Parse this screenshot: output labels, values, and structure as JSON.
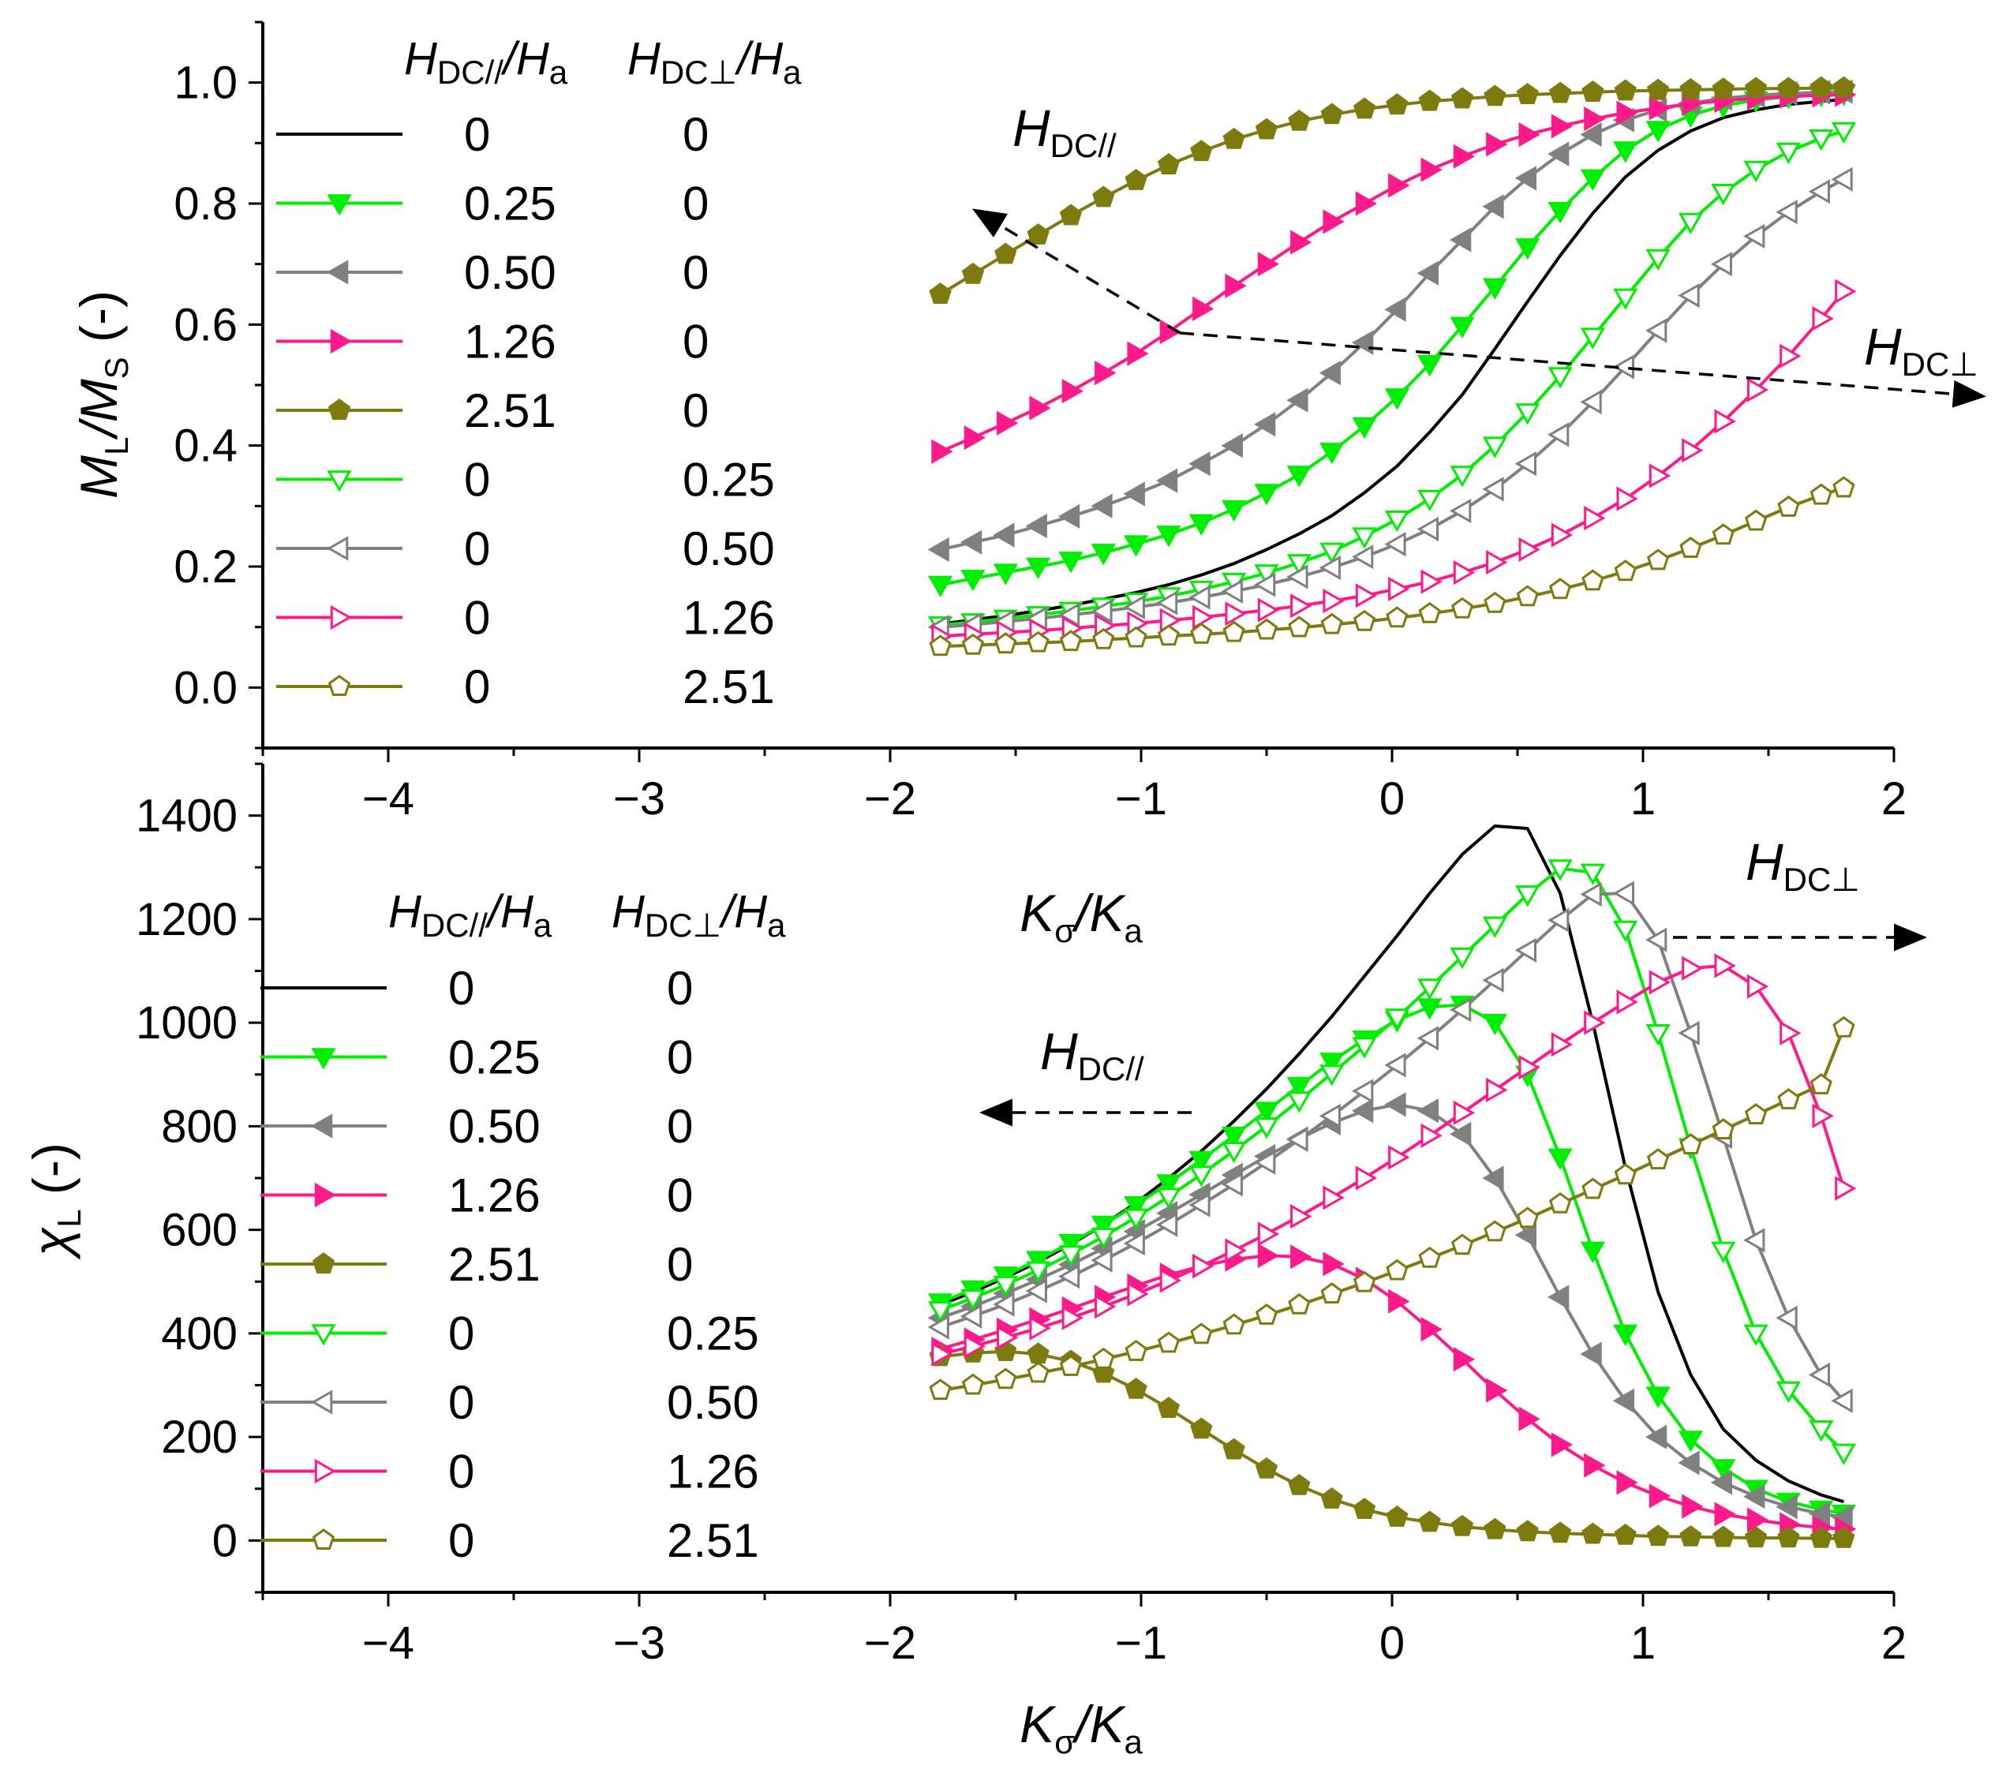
{
  "colors": {
    "black": "#000000",
    "green": "#00ee00",
    "gray": "#808080",
    "pink": "#ff1a8c",
    "olive": "#7d7a0e"
  },
  "legend": {
    "headers": {
      "par_main": "H",
      "par_sub": "DC//",
      "par_rest": "/H",
      "par_rest_sub": "a",
      "perp_main": "H",
      "perp_sub": "DC⊥",
      "perp_rest": "/H",
      "perp_rest_sub": "a"
    },
    "rows": [
      {
        "par": "0",
        "perp": "0"
      },
      {
        "par": "0.25",
        "perp": "0"
      },
      {
        "par": "0.50",
        "perp": "0"
      },
      {
        "par": "1.26",
        "perp": "0"
      },
      {
        "par": "2.51",
        "perp": "0"
      },
      {
        "par": "0",
        "perp": "0.25"
      },
      {
        "par": "0",
        "perp": "0.50"
      },
      {
        "par": "0",
        "perp": "1.26"
      },
      {
        "par": "0",
        "perp": "2.51"
      }
    ]
  },
  "annotations": {
    "top_par": {
      "main": "H",
      "sub": "DC//"
    },
    "top_perp": {
      "main": "H",
      "sub": "DC⊥"
    },
    "bottom_par": {
      "main": "H",
      "sub": "DC//"
    },
    "bottom_perp": {
      "main": "H",
      "sub": "DC⊥"
    }
  },
  "chart_data": [
    {
      "type": "line",
      "title": "",
      "xlabel": "Kσ/Ka",
      "ylabel": "ML/MS (-)",
      "xlabel_parts": {
        "a": "K",
        "a_sub": "σ",
        "b": "/K",
        "b_sub": "a"
      },
      "ylabel_parts": {
        "a": "M",
        "a_sub": "L",
        "b": "/M",
        "b_sub": "S",
        "c": " (-)"
      },
      "xlim": [
        -4.5,
        2
      ],
      "ylim": [
        -0.1,
        1.1
      ],
      "xticks": [
        -4,
        -3,
        -2,
        -1,
        0,
        1,
        2
      ],
      "xtick_labels": [
        "−4",
        "−3",
        "−2",
        "−1",
        "0",
        "1",
        "2"
      ],
      "yticks": [
        0.0,
        0.2,
        0.4,
        0.6,
        0.8,
        1.0
      ],
      "ytick_labels": [
        "0.0",
        "0.2",
        "0.4",
        "0.6",
        "0.8",
        "1.0"
      ],
      "x": [
        -1.8,
        -1.67,
        -1.54,
        -1.41,
        -1.28,
        -1.15,
        -1.02,
        -0.89,
        -0.76,
        -0.63,
        -0.5,
        -0.37,
        -0.24,
        -0.11,
        0.02,
        0.15,
        0.28,
        0.41,
        0.54,
        0.67,
        0.8,
        0.93,
        1.06,
        1.19,
        1.32,
        1.45,
        1.58,
        1.71,
        1.8
      ],
      "series": [
        {
          "name": "0 / 0",
          "color": "black",
          "marker": "none",
          "filled": false,
          "values": [
            0.105,
            0.112,
            0.119,
            0.127,
            0.136,
            0.146,
            0.157,
            0.17,
            0.186,
            0.205,
            0.228,
            0.254,
            0.284,
            0.322,
            0.366,
            0.422,
            0.484,
            0.56,
            0.638,
            0.714,
            0.784,
            0.844,
            0.888,
            0.92,
            0.942,
            0.955,
            0.964,
            0.969,
            0.972
          ]
        },
        {
          "name": "0.25 / 0",
          "color": "green",
          "marker": "tri-down",
          "filled": true,
          "values": [
            0.17,
            0.18,
            0.19,
            0.2,
            0.21,
            0.223,
            0.237,
            0.253,
            0.272,
            0.295,
            0.322,
            0.352,
            0.39,
            0.432,
            0.48,
            0.535,
            0.598,
            0.662,
            0.728,
            0.788,
            0.842,
            0.888,
            0.922,
            0.946,
            0.962,
            0.971,
            0.977,
            0.98,
            0.982
          ]
        },
        {
          "name": "0.50 / 0",
          "color": "gray",
          "marker": "tri-left",
          "filled": true,
          "values": [
            0.228,
            0.24,
            0.252,
            0.267,
            0.283,
            0.3,
            0.32,
            0.342,
            0.37,
            0.4,
            0.435,
            0.475,
            0.52,
            0.57,
            0.625,
            0.685,
            0.74,
            0.795,
            0.842,
            0.882,
            0.914,
            0.938,
            0.955,
            0.966,
            0.974,
            0.979,
            0.982,
            0.984,
            0.985
          ]
        },
        {
          "name": "1.26 / 0",
          "color": "pink",
          "marker": "tri-right",
          "filled": true,
          "values": [
            0.39,
            0.413,
            0.437,
            0.462,
            0.49,
            0.52,
            0.552,
            0.588,
            0.626,
            0.664,
            0.7,
            0.736,
            0.77,
            0.8,
            0.83,
            0.856,
            0.878,
            0.898,
            0.914,
            0.928,
            0.94,
            0.95,
            0.958,
            0.965,
            0.97,
            0.974,
            0.977,
            0.979,
            0.98
          ]
        },
        {
          "name": "2.51 / 0",
          "color": "olive",
          "marker": "pent",
          "filled": true,
          "values": [
            0.65,
            0.683,
            0.716,
            0.748,
            0.78,
            0.81,
            0.838,
            0.864,
            0.886,
            0.906,
            0.922,
            0.936,
            0.947,
            0.956,
            0.963,
            0.969,
            0.973,
            0.977,
            0.98,
            0.982,
            0.984,
            0.986,
            0.987,
            0.988,
            0.989,
            0.99,
            0.99,
            0.991,
            0.991
          ]
        },
        {
          "name": "0 / 0.25",
          "color": "green",
          "marker": "tri-down",
          "filled": false,
          "values": [
            0.103,
            0.108,
            0.114,
            0.12,
            0.127,
            0.134,
            0.142,
            0.151,
            0.162,
            0.175,
            0.189,
            0.206,
            0.225,
            0.25,
            0.278,
            0.312,
            0.352,
            0.4,
            0.455,
            0.515,
            0.58,
            0.645,
            0.71,
            0.77,
            0.818,
            0.856,
            0.886,
            0.908,
            0.92
          ]
        },
        {
          "name": "0 / 0.50",
          "color": "gray",
          "marker": "tri-left",
          "filled": false,
          "values": [
            0.1,
            0.104,
            0.109,
            0.114,
            0.12,
            0.126,
            0.133,
            0.14,
            0.149,
            0.159,
            0.17,
            0.183,
            0.198,
            0.216,
            0.237,
            0.262,
            0.292,
            0.328,
            0.37,
            0.418,
            0.472,
            0.53,
            0.59,
            0.648,
            0.7,
            0.746,
            0.786,
            0.82,
            0.84
          ]
        },
        {
          "name": "0 / 1.26",
          "color": "pink",
          "marker": "tri-right",
          "filled": false,
          "values": [
            0.085,
            0.088,
            0.091,
            0.094,
            0.098,
            0.102,
            0.106,
            0.111,
            0.116,
            0.122,
            0.128,
            0.135,
            0.143,
            0.152,
            0.163,
            0.175,
            0.19,
            0.207,
            0.228,
            0.252,
            0.28,
            0.312,
            0.35,
            0.392,
            0.44,
            0.492,
            0.548,
            0.61,
            0.655
          ]
        },
        {
          "name": "0 / 2.51",
          "color": "olive",
          "marker": "pent",
          "filled": false,
          "values": [
            0.068,
            0.07,
            0.072,
            0.074,
            0.076,
            0.079,
            0.082,
            0.085,
            0.088,
            0.091,
            0.095,
            0.099,
            0.104,
            0.109,
            0.115,
            0.122,
            0.13,
            0.139,
            0.15,
            0.162,
            0.176,
            0.192,
            0.21,
            0.23,
            0.252,
            0.275,
            0.298,
            0.318,
            0.33
          ]
        }
      ]
    },
    {
      "type": "line",
      "title": "",
      "xlabel": "Kσ/Ka",
      "ylabel": "χL (-)",
      "xlabel_parts": {
        "a": "K",
        "a_sub": "σ",
        "b": "/K",
        "b_sub": "a"
      },
      "ylabel_parts": {
        "a": "χ",
        "a_sub": "L",
        "b": " (-)"
      },
      "xlim": [
        -4.5,
        2
      ],
      "ylim": [
        -100,
        1500
      ],
      "xticks": [
        -4,
        -3,
        -2,
        -1,
        0,
        1,
        2
      ],
      "xtick_labels": [
        "−4",
        "−3",
        "−2",
        "−1",
        "0",
        "1",
        "2"
      ],
      "yticks": [
        0,
        200,
        400,
        600,
        800,
        1000,
        1200,
        1400
      ],
      "ytick_labels": [
        "0",
        "200",
        "400",
        "600",
        "800",
        "1000",
        "1200",
        "1400"
      ],
      "x": [
        -1.8,
        -1.67,
        -1.54,
        -1.41,
        -1.28,
        -1.15,
        -1.02,
        -0.89,
        -0.76,
        -0.63,
        -0.5,
        -0.37,
        -0.24,
        -0.11,
        0.02,
        0.15,
        0.28,
        0.41,
        0.54,
        0.67,
        0.8,
        0.93,
        1.06,
        1.19,
        1.32,
        1.45,
        1.58,
        1.71,
        1.8
      ],
      "series": [
        {
          "name": "0 / 0",
          "color": "black",
          "marker": "none",
          "filled": false,
          "values": [
            455,
            480,
            508,
            538,
            572,
            610,
            652,
            700,
            752,
            810,
            872,
            940,
            1012,
            1090,
            1168,
            1250,
            1325,
            1380,
            1375,
            1250,
            1000,
            720,
            480,
            320,
            215,
            155,
            115,
            88,
            75
          ]
        },
        {
          "name": "0.25 / 0",
          "color": "green",
          "marker": "tri-down",
          "filled": true,
          "values": [
            460,
            485,
            512,
            542,
            575,
            610,
            648,
            690,
            735,
            782,
            830,
            878,
            925,
            968,
            1005,
            1030,
            1035,
            1000,
            900,
            740,
            560,
            400,
            280,
            195,
            140,
            100,
            75,
            60,
            52
          ]
        },
        {
          "name": "0.50 / 0",
          "color": "gray",
          "marker": "tri-left",
          "filled": true,
          "values": [
            430,
            452,
            477,
            504,
            533,
            564,
            597,
            632,
            668,
            706,
            742,
            776,
            806,
            830,
            842,
            830,
            785,
            700,
            590,
            470,
            360,
            270,
            200,
            150,
            112,
            85,
            65,
            52,
            45
          ]
        },
        {
          "name": "1.26 / 0",
          "color": "pink",
          "marker": "tri-right",
          "filled": true,
          "values": [
            370,
            388,
            407,
            427,
            448,
            470,
            492,
            513,
            530,
            543,
            550,
            548,
            534,
            505,
            462,
            408,
            350,
            290,
            235,
            185,
            145,
            112,
            86,
            66,
            51,
            40,
            31,
            25,
            22
          ]
        },
        {
          "name": "2.51 / 0",
          "color": "olive",
          "marker": "pent",
          "filled": true,
          "values": [
            355,
            362,
            365,
            360,
            346,
            323,
            292,
            255,
            215,
            175,
            138,
            106,
            80,
            60,
            45,
            35,
            27,
            21,
            17,
            14,
            12,
            10,
            8,
            7,
            6,
            5,
            5,
            4,
            4
          ]
        },
        {
          "name": "0 / 0.25",
          "color": "green",
          "marker": "tri-down",
          "filled": false,
          "values": [
            445,
            468,
            494,
            522,
            553,
            587,
            624,
            664,
            707,
            753,
            800,
            850,
            902,
            955,
            1010,
            1068,
            1128,
            1188,
            1248,
            1298,
            1290,
            1180,
            980,
            760,
            560,
            400,
            290,
            215,
            170
          ]
        },
        {
          "name": "0 / 0.50",
          "color": "gray",
          "marker": "tri-left",
          "filled": false,
          "values": [
            412,
            433,
            456,
            482,
            510,
            541,
            574,
            610,
            648,
            688,
            730,
            774,
            820,
            868,
            918,
            970,
            1025,
            1082,
            1140,
            1198,
            1248,
            1250,
            1160,
            980,
            780,
            580,
            430,
            320,
            270
          ]
        },
        {
          "name": "0 / 1.26",
          "color": "pink",
          "marker": "tri-right",
          "filled": false,
          "values": [
            360,
            375,
            392,
            410,
            430,
            452,
            476,
            502,
            530,
            560,
            592,
            626,
            662,
            700,
            740,
            782,
            826,
            870,
            914,
            958,
            1000,
            1040,
            1078,
            1105,
            1110,
            1070,
            980,
            820,
            680
          ]
        },
        {
          "name": "0 / 2.51",
          "color": "olive",
          "marker": "pent",
          "filled": false,
          "values": [
            290,
            300,
            311,
            323,
            336,
            350,
            365,
            381,
            398,
            416,
            435,
            455,
            476,
            498,
            521,
            545,
            570,
            596,
            622,
            650,
            678,
            706,
            735,
            764,
            793,
            822,
            851,
            880,
            990
          ]
        }
      ]
    }
  ]
}
